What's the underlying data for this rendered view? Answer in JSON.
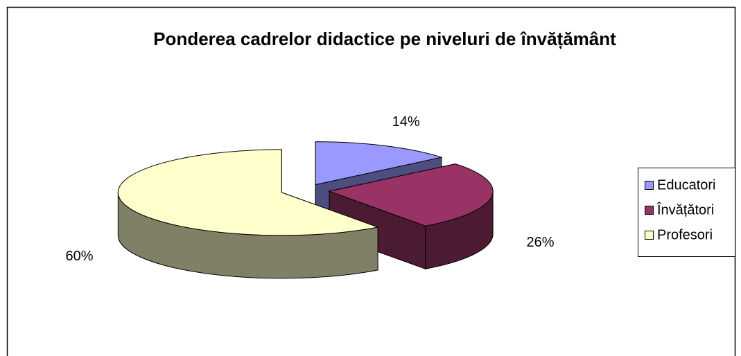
{
  "chart_data": {
    "type": "pie3d",
    "title": "Ponderea cadrelor didactice pe niveluri de învățământ",
    "categories": [
      "Educatori",
      "Învățători",
      "Profesori"
    ],
    "series": [
      {
        "name": "Ponderea",
        "values": [
          14,
          26,
          60
        ],
        "value_labels": [
          "14%",
          "26%",
          "60%"
        ],
        "colors": [
          "#9999ff",
          "#993366",
          "#ffffcc"
        ]
      }
    ],
    "legend": "right"
  }
}
